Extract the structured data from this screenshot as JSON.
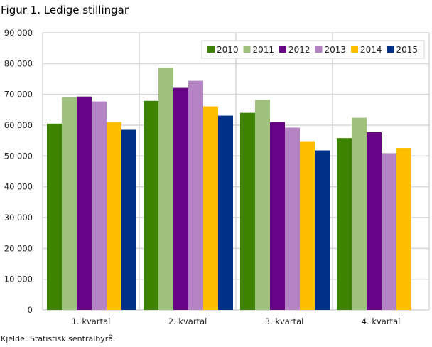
{
  "chart_data": {
    "type": "bar",
    "title": "Figur 1. Ledige stillingar",
    "source": "Kjelde: Statistisk sentralbyrå.",
    "xlabel": "",
    "ylabel": "",
    "ylim": [
      0,
      90000
    ],
    "yticks": [
      0,
      10000,
      20000,
      30000,
      40000,
      50000,
      60000,
      70000,
      80000,
      90000
    ],
    "ytick_labels": [
      "0",
      "10 000",
      "20 000",
      "30 000",
      "40 000",
      "50 000",
      "60 000",
      "70 000",
      "80 000",
      "90 000"
    ],
    "grid": true,
    "legend_position": "top-right",
    "categories": [
      "1. kvartal",
      "2. kvartal",
      "3. kvartal",
      "4. kvartal"
    ],
    "series": [
      {
        "name": "2010",
        "color": "#3d8200",
        "values": [
          60500,
          67900,
          64000,
          55800
        ]
      },
      {
        "name": "2011",
        "color": "#9ec27e",
        "values": [
          69100,
          78600,
          68200,
          62400
        ]
      },
      {
        "name": "2012",
        "color": "#670586",
        "values": [
          69300,
          72100,
          61000,
          57700
        ]
      },
      {
        "name": "2013",
        "color": "#b383c4",
        "values": [
          67700,
          74400,
          59200,
          50900
        ]
      },
      {
        "name": "2014",
        "color": "#ffbf00",
        "values": [
          61000,
          66100,
          54800,
          52600
        ]
      },
      {
        "name": "2015",
        "color": "#003087",
        "values": [
          58500,
          63100,
          51800,
          null
        ]
      }
    ]
  }
}
